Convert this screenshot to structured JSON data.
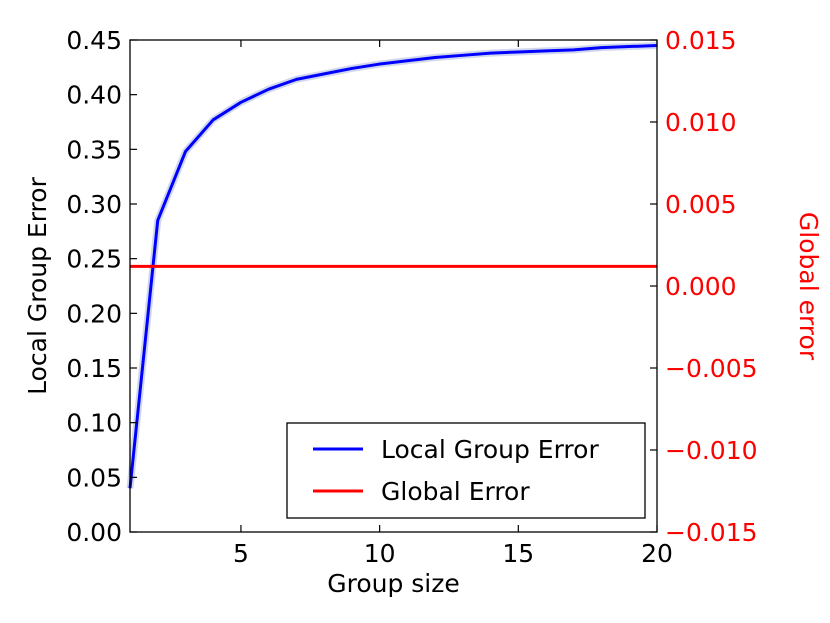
{
  "chart_data": {
    "type": "line",
    "xlabel": "Group size",
    "ylabel": "Local Group Error",
    "y2label": "Global error",
    "xlim": [
      1,
      20
    ],
    "ylim": [
      0.0,
      0.45
    ],
    "y2lim": [
      -0.015,
      0.015
    ],
    "x_ticks": [
      "5",
      "10",
      "15",
      "20"
    ],
    "y_ticks": [
      "0.00",
      "0.05",
      "0.10",
      "0.15",
      "0.20",
      "0.25",
      "0.30",
      "0.35",
      "0.40",
      "0.45"
    ],
    "y2_ticks": [
      "−0.015",
      "−0.010",
      "−0.005",
      "0.000",
      "0.005",
      "0.010",
      "0.015"
    ],
    "grid": false,
    "legend_position": "lower-right",
    "series": [
      {
        "name": "Local Group Error",
        "axis": "left",
        "color": "#0000ff",
        "x": [
          1,
          2,
          3,
          4,
          5,
          6,
          7,
          8,
          9,
          10,
          11,
          12,
          13,
          14,
          15,
          16,
          17,
          18,
          19,
          20
        ],
        "y": [
          0.04,
          0.285,
          0.348,
          0.377,
          0.393,
          0.405,
          0.414,
          0.419,
          0.424,
          0.428,
          0.431,
          0.434,
          0.436,
          0.438,
          0.439,
          0.44,
          0.441,
          0.443,
          0.444,
          0.445
        ]
      },
      {
        "name": "Global Error",
        "axis": "right",
        "color": "#ff0000",
        "x": [
          1,
          20
        ],
        "y": [
          0.0012,
          0.0012
        ]
      }
    ]
  }
}
